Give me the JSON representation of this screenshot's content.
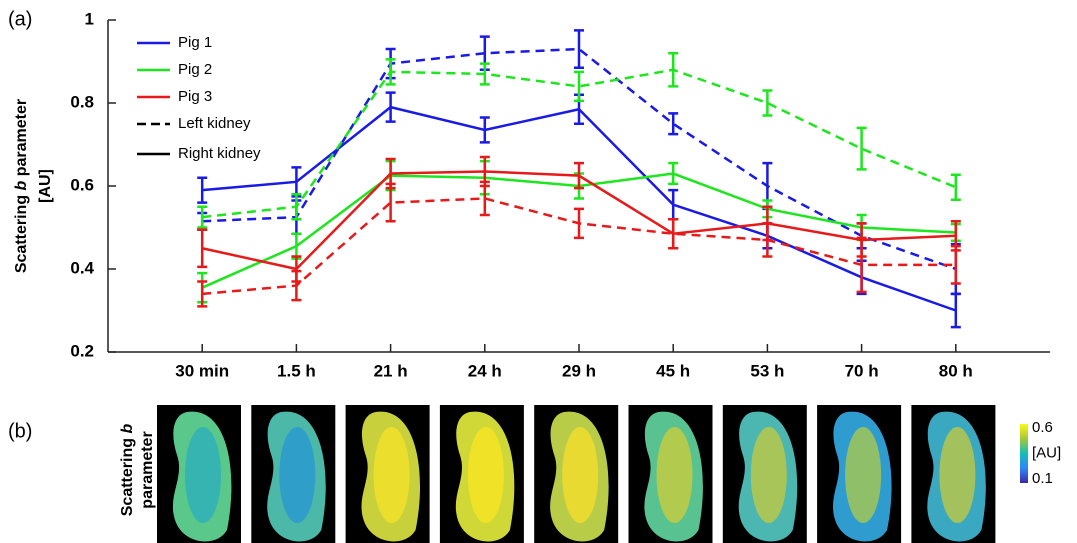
{
  "chart_data": {
    "type": "line",
    "panel_label": "(a)",
    "ylabel": {
      "line1": [
        "Scattering ",
        "b",
        " parameter"
      ],
      "line2": "[AU]"
    },
    "categories": [
      "30 min",
      "1.5 h",
      "21 h",
      "24 h",
      "29 h",
      "45 h",
      "53 h",
      "70 h",
      "80 h"
    ],
    "ylim": [
      0.2,
      1
    ],
    "yticks": [
      0.2,
      0.4,
      0.6,
      0.8,
      1
    ],
    "legend": [
      {
        "label": "Pig 1",
        "color": "#1a1ae6"
      },
      {
        "label": "Pig 2",
        "color": "#1ee61e"
      },
      {
        "label": "Pig 3",
        "color": "#e61a1a"
      },
      {
        "label": "Left kidney",
        "dash": true
      },
      {
        "label": "Right kidney",
        "dash": false
      }
    ],
    "series": [
      {
        "color": "#1a1ae6",
        "dash": false,
        "values": [
          0.59,
          0.61,
          0.79,
          0.735,
          0.785,
          0.555,
          0.48,
          0.38,
          0.3
        ],
        "errors": [
          0.03,
          0.035,
          0.035,
          0.03,
          0.035,
          0.035,
          0.03,
          0.04,
          0.04
        ]
      },
      {
        "color": "#1a1ae6",
        "dash": true,
        "values": [
          0.515,
          0.525,
          0.895,
          0.92,
          0.93,
          0.75,
          0.6,
          0.48,
          0.4
        ],
        "errors": [
          0.02,
          0.04,
          0.035,
          0.04,
          0.045,
          0.025,
          0.055,
          0.03,
          0.06
        ]
      },
      {
        "color": "#1ee61e",
        "dash": false,
        "values": [
          0.355,
          0.455,
          0.625,
          0.62,
          0.6,
          0.63,
          0.545,
          0.5,
          0.488
        ],
        "errors": [
          0.035,
          0.03,
          0.035,
          0.04,
          0.03,
          0.025,
          0.02,
          0.03,
          0.02
        ]
      },
      {
        "color": "#1ee61e",
        "dash": true,
        "values": [
          0.525,
          0.55,
          0.875,
          0.87,
          0.84,
          0.88,
          0.8,
          0.69,
          0.597
        ],
        "errors": [
          0.025,
          0.03,
          0.03,
          0.025,
          0.035,
          0.04,
          0.03,
          0.05,
          0.03
        ]
      },
      {
        "color": "#e61a1a",
        "dash": false,
        "values": [
          0.45,
          0.4,
          0.63,
          0.635,
          0.625,
          0.485,
          0.51,
          0.47,
          0.48
        ],
        "errors": [
          0.045,
          0.03,
          0.035,
          0.035,
          0.03,
          0.035,
          0.04,
          0.04,
          0.035
        ]
      },
      {
        "color": "#e61a1a",
        "dash": true,
        "values": [
          0.34,
          0.36,
          0.56,
          0.57,
          0.51,
          0.485,
          0.47,
          0.41,
          0.41
        ],
        "errors": [
          0.03,
          0.035,
          0.045,
          0.04,
          0.035,
          0.035,
          0.04,
          0.065,
          0.045
        ]
      }
    ]
  },
  "panel_b": {
    "panel_label": "(b)",
    "ylabel": {
      "line1": [
        "Scattering ",
        "b"
      ],
      "line2": "parameter"
    },
    "colorbar": {
      "lim": [
        0.1,
        0.6
      ],
      "label": "[AU]"
    }
  }
}
